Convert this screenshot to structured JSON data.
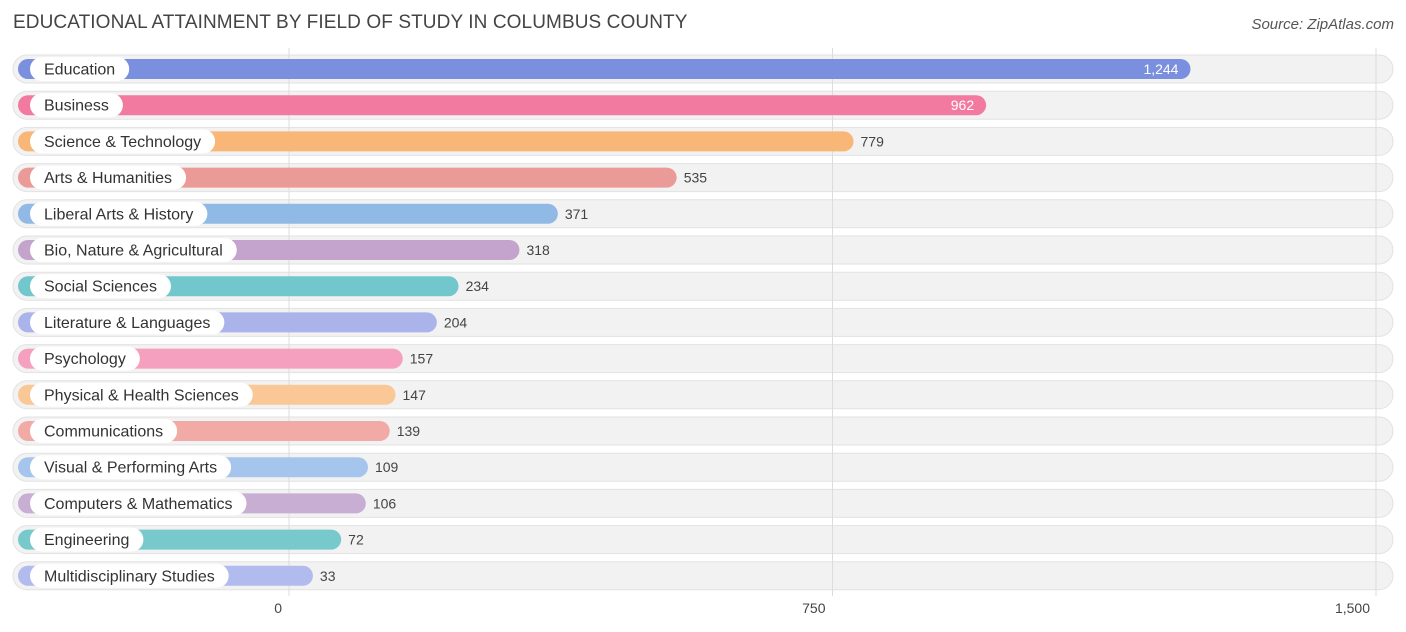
{
  "title": "EDUCATIONAL ATTAINMENT BY FIELD OF STUDY IN COLUMBUS COUNTY",
  "source": "Source: ZipAtlas.com",
  "chart_data": {
    "type": "bar",
    "orientation": "horizontal",
    "title": "EDUCATIONAL ATTAINMENT BY FIELD OF STUDY IN COLUMBUS COUNTY",
    "categories": [
      "Education",
      "Business",
      "Science & Technology",
      "Arts & Humanities",
      "Liberal Arts & History",
      "Bio, Nature & Agricultural",
      "Social Sciences",
      "Literature & Languages",
      "Psychology",
      "Physical & Health Sciences",
      "Communications",
      "Visual & Performing Arts",
      "Computers & Mathematics",
      "Engineering",
      "Multidisciplinary Studies"
    ],
    "values": [
      1244,
      962,
      779,
      535,
      371,
      318,
      234,
      204,
      157,
      147,
      139,
      109,
      106,
      72,
      33
    ],
    "value_labels": [
      "1,244",
      "962",
      "779",
      "535",
      "371",
      "318",
      "234",
      "204",
      "157",
      "147",
      "139",
      "109",
      "106",
      "72",
      "33"
    ],
    "colors": [
      "#7b8fdf",
      "#f27aa1",
      "#f8b677",
      "#eb9b97",
      "#91b9e5",
      "#c4a3cd",
      "#72c7cc",
      "#aab3ea",
      "#f5a0be",
      "#f9c896",
      "#f1aaa5",
      "#a6c5ec",
      "#c9aed3",
      "#77c9cb",
      "#b1bbed"
    ],
    "xlim": [
      0,
      1500
    ],
    "ticks": [
      0,
      750,
      1500
    ],
    "tick_labels": [
      "0",
      "750",
      "1,500"
    ],
    "grid": true
  }
}
